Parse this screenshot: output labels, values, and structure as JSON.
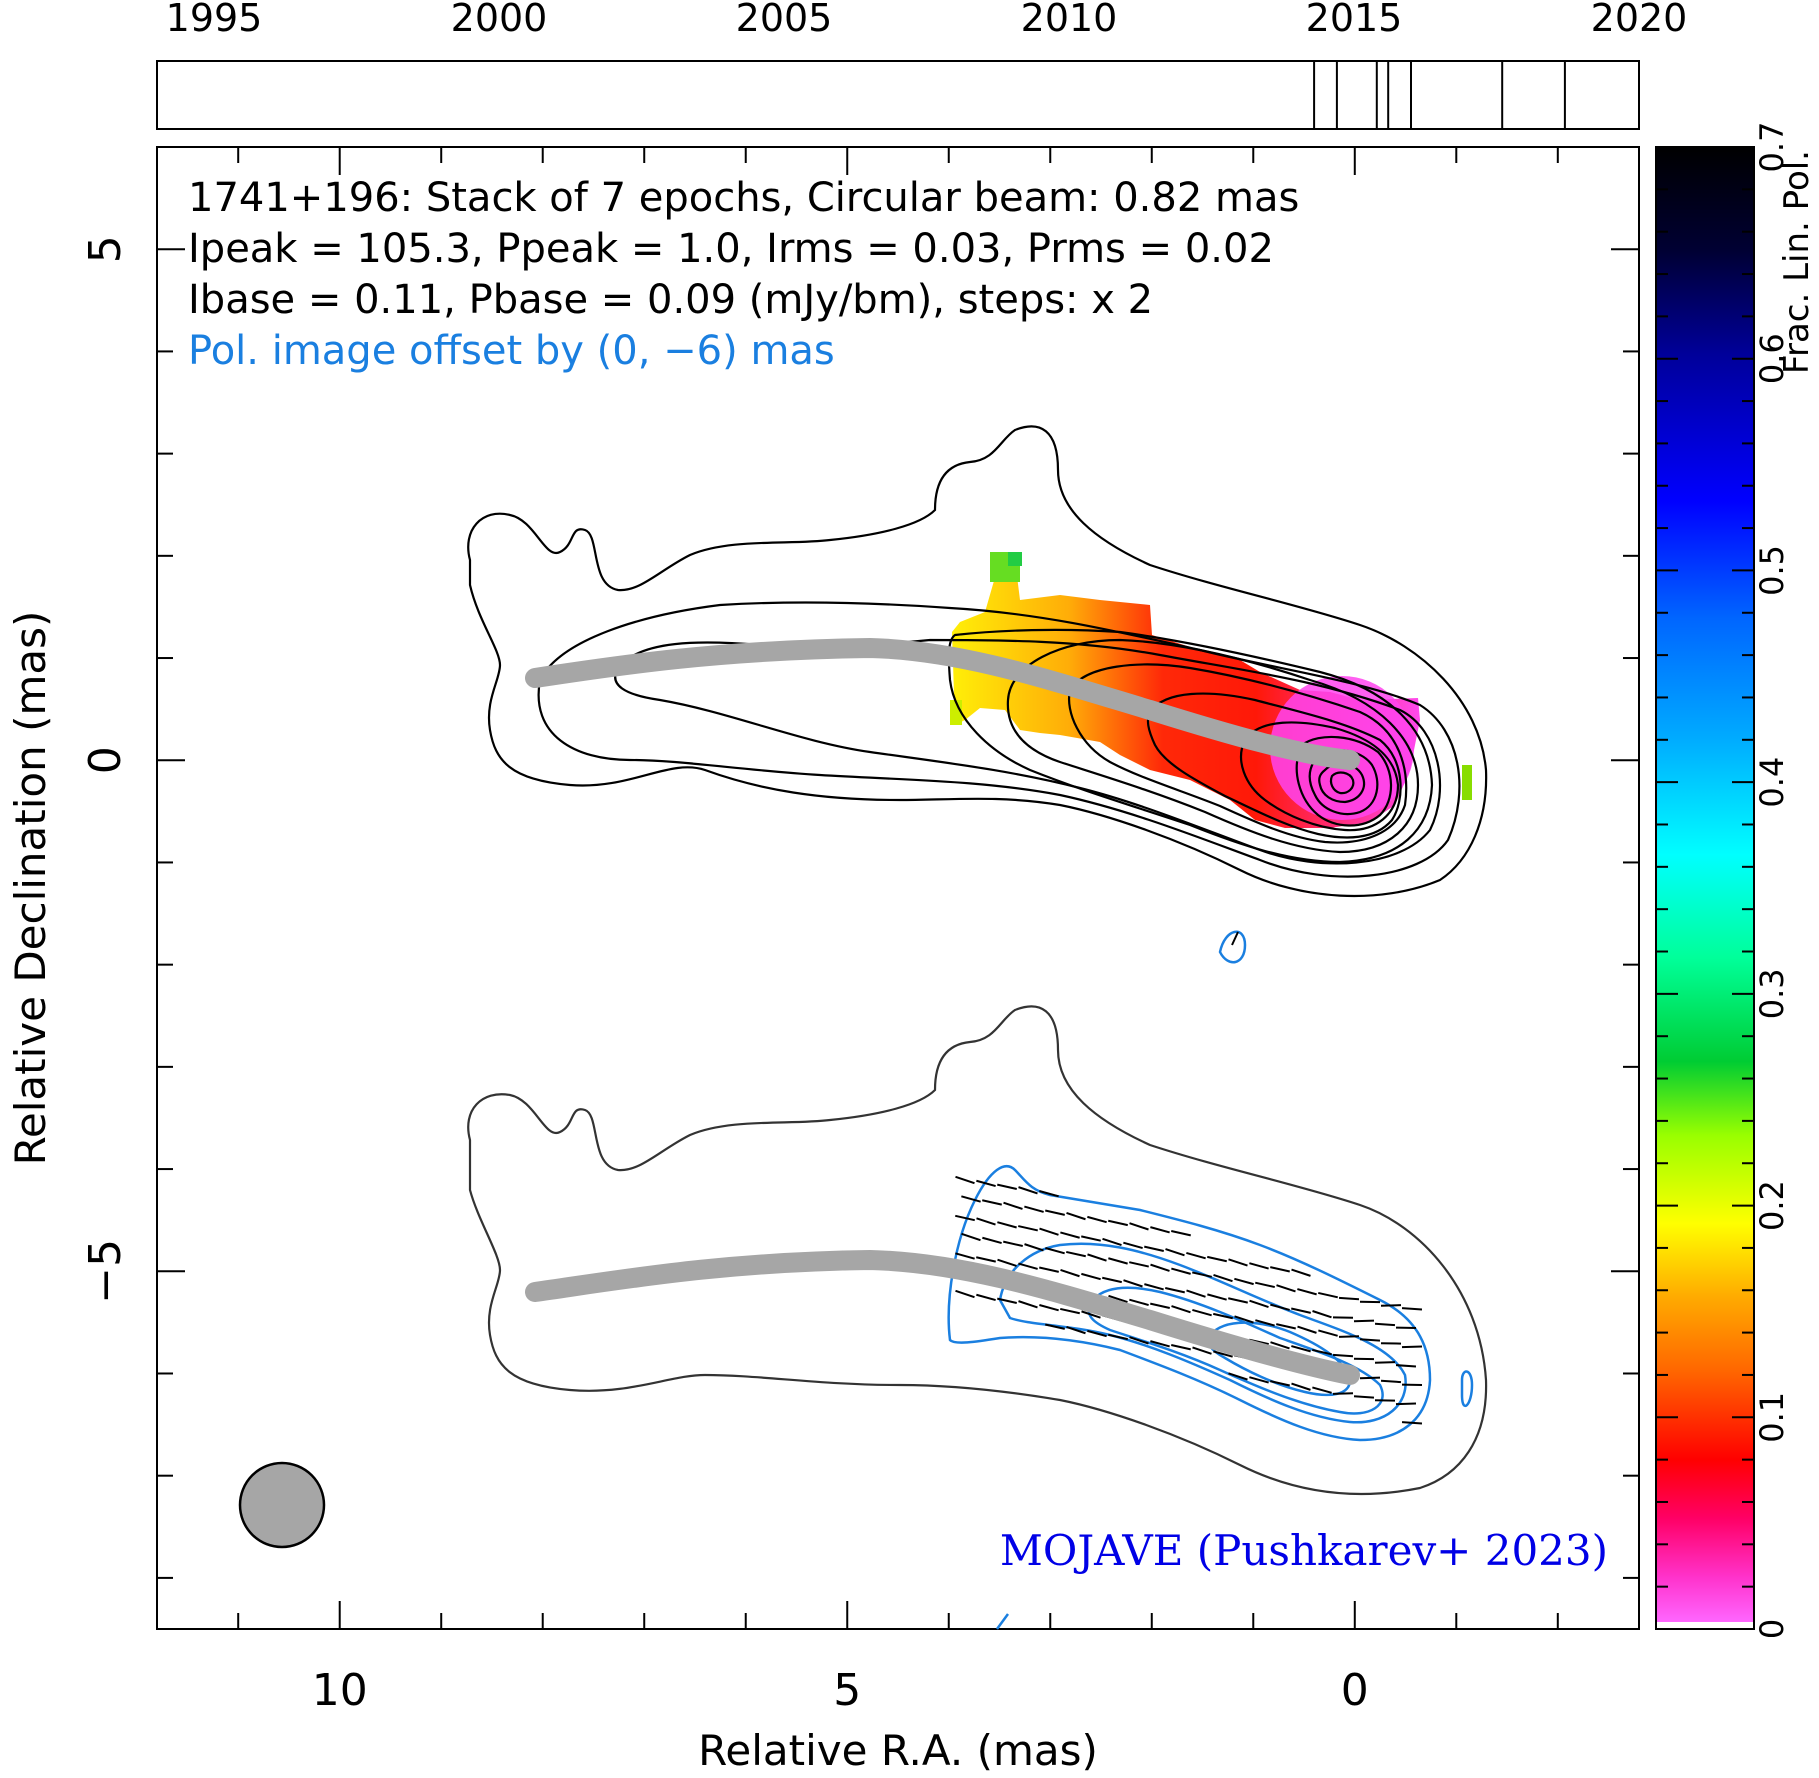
{
  "chart_data": {
    "type": "contour-map",
    "source_name": "1741+196",
    "annotation_lines": [
      "1741+196: Stack of 7 epochs, Circular beam: 0.82 mas",
      "Ipeak = 105.3, Ppeak = 1.0, Irms = 0.03, Prms = 0.02",
      "Ibase = 0.11, Pbase = 0.09 (mJy/bm), steps: x 2"
    ],
    "offset_note": "Pol. image offset by (0, −6) mas",
    "credit": "MOJAVE (Pushkarev+ 2023)",
    "xlabel": "Relative R.A. (mas)",
    "ylabel": "Relative Declination (mas)",
    "xlim": [
      11.8,
      -2.8
    ],
    "ylim": [
      -8.5,
      6
    ],
    "x_ticks": [
      {
        "value": 10,
        "label": "10"
      },
      {
        "value": 5,
        "label": "5"
      },
      {
        "value": 0,
        "label": "0"
      }
    ],
    "y_ticks": [
      {
        "value": 5,
        "label": "5"
      },
      {
        "value": 0,
        "label": "0"
      },
      {
        "value": -5,
        "label": "−5"
      }
    ],
    "epoch_axis": {
      "range": [
        1994,
        2020
      ],
      "ticks": [
        "1995",
        "2000",
        "2005",
        "2010",
        "2015",
        "2020"
      ],
      "epochs": [
        2014.3,
        2014.7,
        2015.4,
        2015.6,
        2016.0,
        2017.6,
        2018.7
      ]
    },
    "colorbar": {
      "label": "Frac. Lin. Pol.",
      "range": [
        0,
        0.7
      ],
      "ticks": [
        "0",
        "0.1",
        "0.2",
        "0.3",
        "0.4",
        "0.5",
        "0.6",
        "0.7"
      ]
    },
    "beam_fwhm_mas": 0.82,
    "ridge_line": [
      [
        8,
        0.8
      ],
      [
        6,
        0.95
      ],
      [
        4.5,
        1.05
      ],
      [
        3.5,
        0.95
      ],
      [
        2.5,
        0.75
      ],
      [
        1.5,
        0.5
      ],
      [
        0.5,
        0.15
      ],
      [
        0,
        0
      ]
    ],
    "pol_offset_mas": [
      0,
      -6
    ],
    "colors": {
      "total_intensity_contours": "#000000",
      "pol_contours": "#1a7fe0",
      "ridge_line": "#a6a6a6",
      "credit": "#0000e6",
      "offset_note": "#1a7fe0"
    }
  }
}
